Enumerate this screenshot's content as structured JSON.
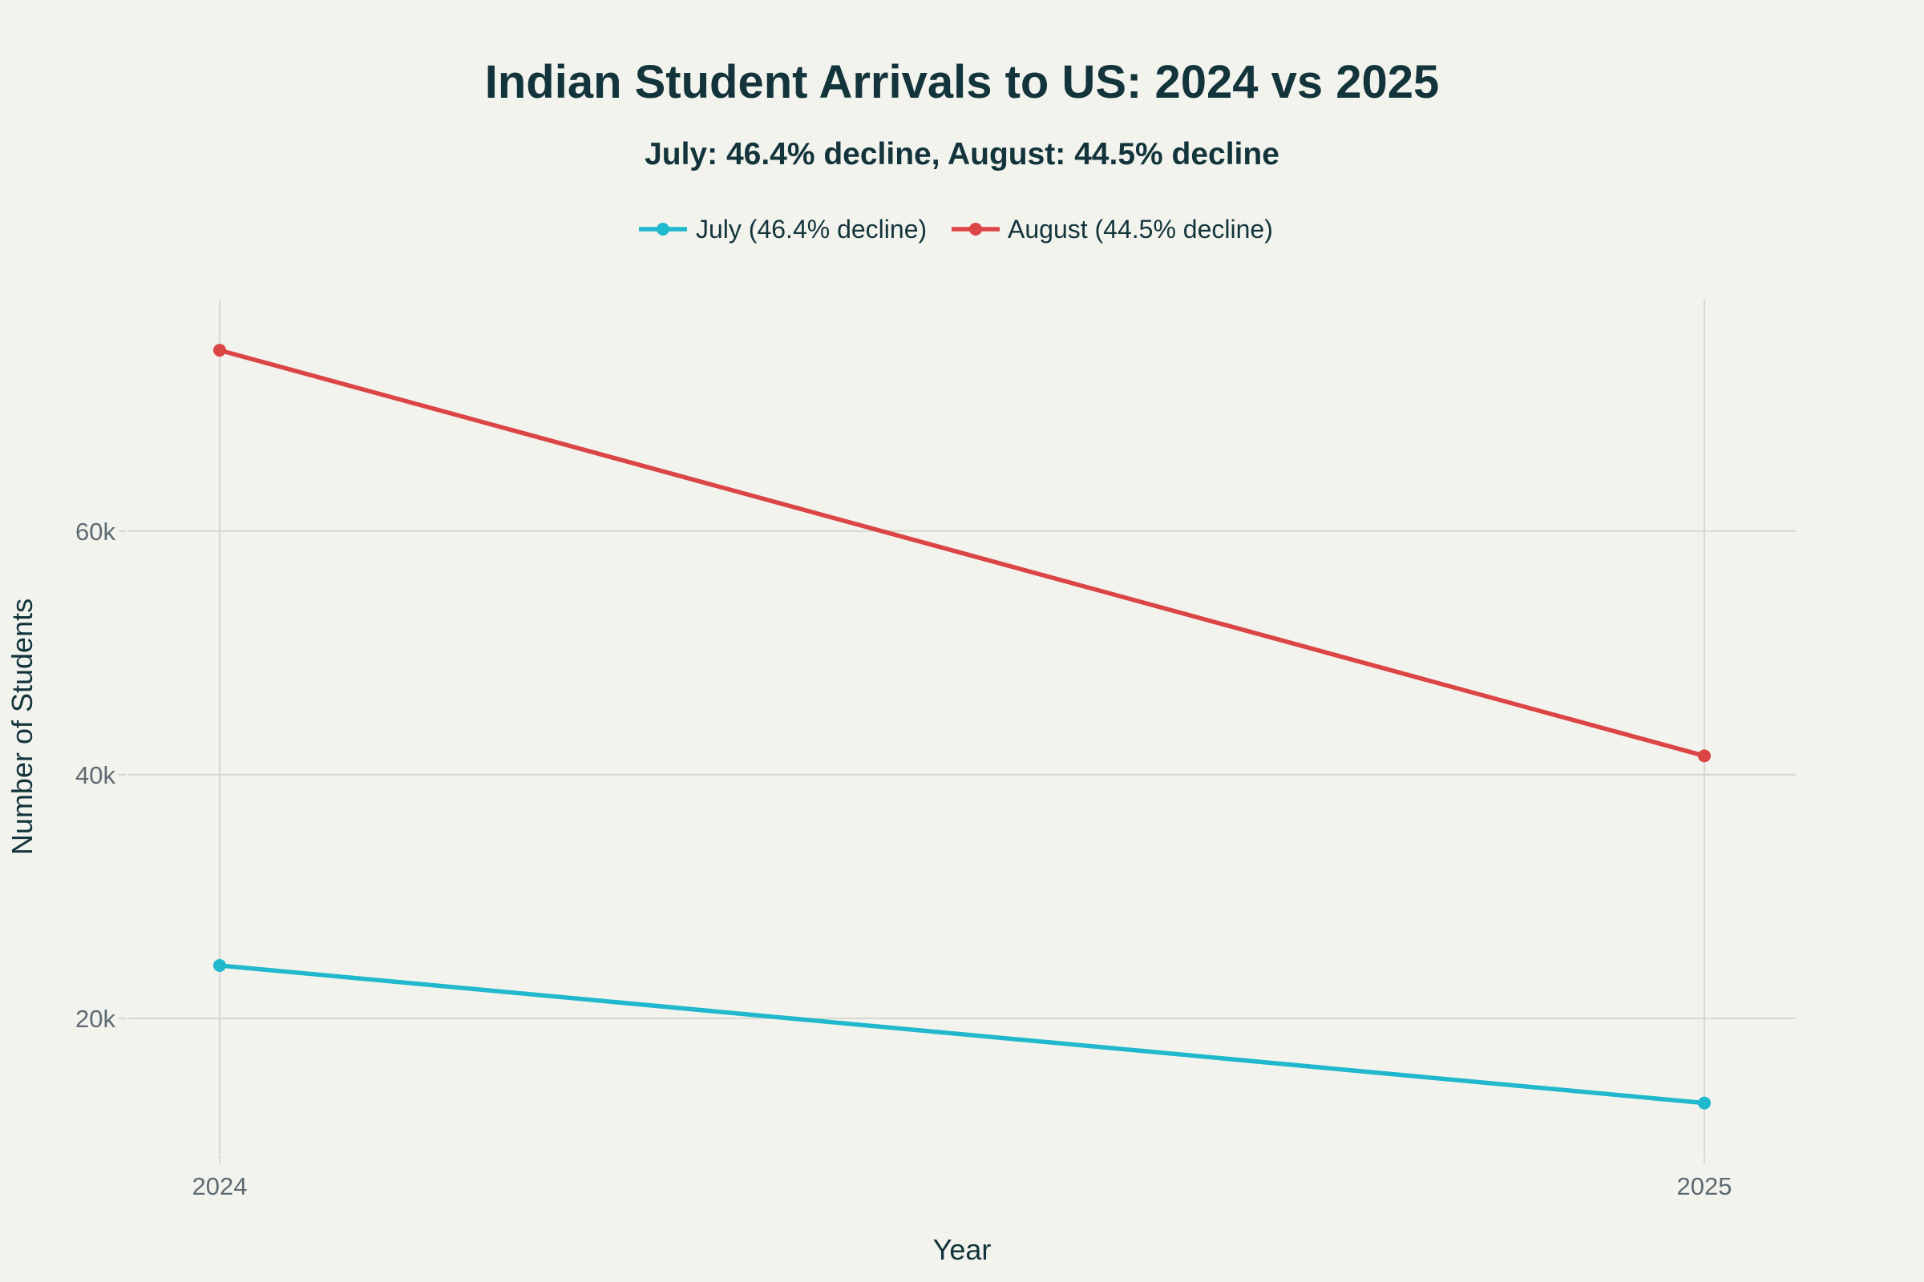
{
  "chart_data": {
    "type": "line",
    "title": "Indian Student Arrivals to US: 2024 vs 2025",
    "subtitle": "July: 46.4% decline, August: 44.5% decline",
    "xlabel": "Year",
    "ylabel": "Number of Students",
    "x": [
      "2024",
      "2025"
    ],
    "x_tick_labels": [
      "2024",
      "2025"
    ],
    "y_ticks": [
      20000,
      40000,
      60000
    ],
    "y_tick_labels": [
      "20k",
      "40k",
      "60k"
    ],
    "ylim": [
      8880,
      79000
    ],
    "grid": true,
    "legend_position": "top-center",
    "series": [
      {
        "name": "July (46.4% decline)",
        "color": "#1FB8CD",
        "values": [
          24340,
          13050
        ]
      },
      {
        "name": "August (44.5% decline)",
        "color": "#DB4545",
        "values": [
          74850,
          41550
        ]
      }
    ]
  },
  "colors": {
    "background": "#F3F3EE",
    "text": "#13343B",
    "tick_text": "#5E6A71",
    "grid": "#D7D6D1"
  }
}
